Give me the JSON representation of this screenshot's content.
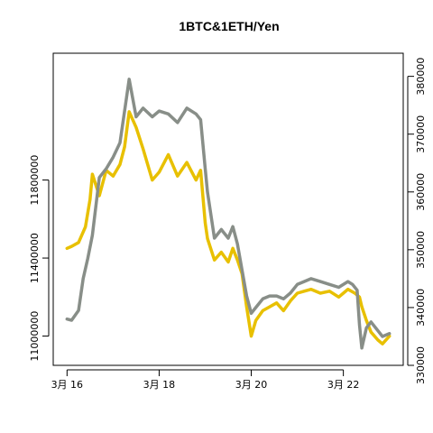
{
  "chart_data": {
    "type": "line",
    "title": "1BTC&1ETH/Yen",
    "x_ticks": [
      "3月 16",
      "3月 18",
      "3月 20",
      "3月 22"
    ],
    "x_tick_positions": [
      16,
      18,
      20,
      22
    ],
    "xlim": [
      15.7,
      23.3
    ],
    "ylim_left": [
      10850000,
      12450000
    ],
    "ylim_right": [
      330000,
      384000
    ],
    "y_left_ticks": [
      11000000,
      11400000,
      11800000
    ],
    "y_right_ticks": [
      330000,
      340000,
      350000,
      360000,
      370000,
      380000
    ],
    "series": [
      {
        "axis": "left",
        "color": "#e8c000",
        "x": [
          16.0,
          16.1,
          16.25,
          16.4,
          16.5,
          16.55,
          16.7,
          16.85,
          17.0,
          17.15,
          17.25,
          17.35,
          17.5,
          17.65,
          17.85,
          18.0,
          18.2,
          18.4,
          18.6,
          18.8,
          18.9,
          19.0,
          19.05,
          19.2,
          19.35,
          19.5,
          19.6,
          19.7,
          19.8,
          19.9,
          20.0,
          20.1,
          20.25,
          20.4,
          20.55,
          20.7,
          20.85,
          21.0,
          21.15,
          21.3,
          21.5,
          21.7,
          21.9,
          22.1,
          22.25,
          22.35,
          22.4,
          22.5,
          22.6,
          22.75,
          22.85,
          23.0
        ],
        "values": [
          11450000,
          11460000,
          11480000,
          11560000,
          11700000,
          11830000,
          11720000,
          11850000,
          11820000,
          11880000,
          11970000,
          12150000,
          12070000,
          11960000,
          11800000,
          11840000,
          11930000,
          11820000,
          11890000,
          11800000,
          11850000,
          11580000,
          11500000,
          11390000,
          11430000,
          11380000,
          11450000,
          11390000,
          11320000,
          11150000,
          11000000,
          11080000,
          11130000,
          11150000,
          11170000,
          11130000,
          11180000,
          11220000,
          11230000,
          11240000,
          11220000,
          11230000,
          11200000,
          11240000,
          11220000,
          11200000,
          11150000,
          11080000,
          11020000,
          10980000,
          10960000,
          11000000
        ]
      },
      {
        "axis": "right",
        "color": "#888e88",
        "x": [
          16.0,
          16.1,
          16.25,
          16.35,
          16.45,
          16.55,
          16.7,
          16.85,
          17.0,
          17.15,
          17.25,
          17.35,
          17.5,
          17.65,
          17.85,
          18.0,
          18.2,
          18.4,
          18.6,
          18.8,
          18.9,
          19.0,
          19.05,
          19.2,
          19.35,
          19.5,
          19.6,
          19.7,
          19.8,
          19.9,
          20.0,
          20.1,
          20.25,
          20.4,
          20.55,
          20.7,
          20.85,
          21.0,
          21.15,
          21.3,
          21.5,
          21.7,
          21.9,
          22.1,
          22.2,
          22.3,
          22.35,
          22.4,
          22.5,
          22.6,
          22.75,
          22.85,
          23.0
        ],
        "values": [
          338000,
          337800,
          339500,
          345000,
          348500,
          352500,
          362500,
          364000,
          366000,
          368500,
          374000,
          379500,
          373000,
          374500,
          373000,
          374000,
          373500,
          372000,
          374500,
          373500,
          372500,
          364000,
          360000,
          352000,
          353500,
          352000,
          354000,
          351000,
          346500,
          342000,
          339000,
          340000,
          341500,
          342000,
          342000,
          341500,
          342500,
          344000,
          344500,
          345000,
          344500,
          344000,
          343500,
          344500,
          344000,
          343000,
          337000,
          333000,
          336500,
          337500,
          336000,
          335000,
          335500
        ]
      }
    ],
    "grid": false,
    "legend": "none"
  }
}
